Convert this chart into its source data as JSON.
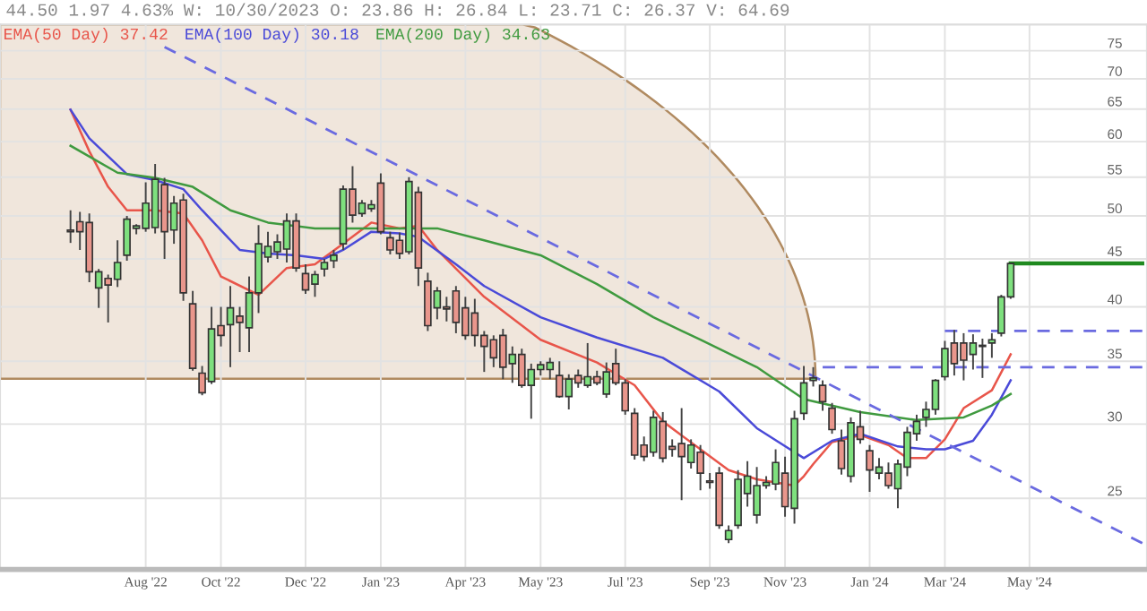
{
  "chart_data": {
    "type": "candlestick",
    "title": "44.50 1.97 4.63% W: 10/30/2023 O: 23.86 H: 26.84 L: 23.71 C: 26.37 V: 64.69",
    "categories": [
      null,
      null,
      null,
      null,
      null,
      null,
      null,
      null,
      null,
      null,
      null,
      null,
      null,
      null,
      null,
      "Aug '22",
      null,
      null,
      null,
      null,
      null,
      null,
      null,
      "Oct '22",
      null,
      null,
      null,
      null,
      null,
      null,
      null,
      null,
      "Dec '22",
      null,
      null,
      null,
      null,
      null,
      null,
      null,
      "Jan '23",
      null,
      null,
      null,
      null,
      null,
      null,
      null,
      null,
      "Apr '23",
      null,
      null,
      null,
      null,
      null,
      null,
      null,
      "May '23",
      null,
      null,
      null,
      null,
      null,
      null,
      null,
      null,
      "Jul '23",
      null,
      null,
      null,
      null,
      null,
      null,
      null,
      null,
      "Sep '23",
      null,
      null,
      null,
      null,
      null,
      null,
      null,
      "Nov '23",
      null,
      null,
      null,
      null,
      null,
      null,
      null,
      null,
      "Jan '24",
      null,
      null,
      null,
      null,
      null,
      null,
      null,
      "Mar '24",
      null,
      null,
      null,
      null,
      null,
      null,
      null,
      null,
      "May '24",
      null,
      null,
      null,
      null,
      null,
      null,
      null,
      null,
      null,
      null,
      null,
      null
    ],
    "ohlc": [
      null,
      null,
      null,
      null,
      null,
      null,
      null,
      [
        48.3,
        50.7,
        46.8,
        48.1
      ],
      [
        49.3,
        50.5,
        46.0,
        48.1
      ],
      [
        49.2,
        50.3,
        42.5,
        43.6
      ],
      [
        41.9,
        43.9,
        39.9,
        43.6
      ],
      [
        42.9,
        43.3,
        38.5,
        42.2
      ],
      [
        42.8,
        47.1,
        42.0,
        44.6
      ],
      [
        45.4,
        50.0,
        44.8,
        49.6
      ],
      [
        48.5,
        49.0,
        47.8,
        48.8
      ],
      [
        48.5,
        54.3,
        48.1,
        51.6
      ],
      [
        48.6,
        56.8,
        47.9,
        54.7
      ],
      [
        54.0,
        54.9,
        45.0,
        48.1
      ],
      [
        48.3,
        52.5,
        46.7,
        51.6
      ],
      [
        52.0,
        52.8,
        40.6,
        41.4
      ],
      [
        40.3,
        41.6,
        34.2,
        34.4
      ],
      [
        34.0,
        34.6,
        32.2,
        32.4
      ],
      [
        33.3,
        40.0,
        33.1,
        37.9
      ],
      [
        38.2,
        40.0,
        36.3,
        37.3
      ],
      [
        38.3,
        42.1,
        34.5,
        39.9
      ],
      [
        39.1,
        40.0,
        35.8,
        38.5
      ],
      [
        38.0,
        43.1,
        35.8,
        41.4
      ],
      [
        41.4,
        48.9,
        39.4,
        46.7
      ],
      [
        45.2,
        48.1,
        44.6,
        46.4
      ],
      [
        45.8,
        47.8,
        45.0,
        46.9
      ],
      [
        46.1,
        50.3,
        44.6,
        49.4
      ],
      [
        49.4,
        50.3,
        43.6,
        44.0
      ],
      [
        43.4,
        44.4,
        41.3,
        41.7
      ],
      [
        42.3,
        43.7,
        41.0,
        43.3
      ],
      [
        43.9,
        45.0,
        43.1,
        44.6
      ],
      [
        44.8,
        46.0,
        44.0,
        45.4
      ],
      [
        46.7,
        53.9,
        46.0,
        53.4
      ],
      [
        53.4,
        56.5,
        49.2,
        50.1
      ],
      [
        50.3,
        52.0,
        49.9,
        51.6
      ],
      [
        50.9,
        52.0,
        50.5,
        51.4
      ],
      [
        54.2,
        55.5,
        47.8,
        48.1
      ],
      [
        47.4,
        48.1,
        45.5,
        46.0
      ],
      [
        47.1,
        48.0,
        45.0,
        45.6
      ],
      [
        45.8,
        55.0,
        45.5,
        54.4
      ],
      [
        53.0,
        53.7,
        42.1,
        44.0
      ],
      [
        42.6,
        43.5,
        37.7,
        38.2
      ],
      [
        39.9,
        42.0,
        38.8,
        41.6
      ],
      [
        40.0,
        41.0,
        38.6,
        39.8
      ],
      [
        41.6,
        42.1,
        37.5,
        38.5
      ],
      [
        39.9,
        41.0,
        36.9,
        37.3
      ],
      [
        39.4,
        40.8,
        36.3,
        37.3
      ],
      [
        37.3,
        37.7,
        34.1,
        36.3
      ],
      [
        36.9,
        37.3,
        34.5,
        35.3
      ],
      [
        37.3,
        37.9,
        33.5,
        34.5
      ],
      [
        34.8,
        36.3,
        33.2,
        35.6
      ],
      [
        35.6,
        36.1,
        32.8,
        33.0
      ],
      [
        33.0,
        34.8,
        30.4,
        34.3
      ],
      [
        34.3,
        35.0,
        33.8,
        34.7
      ],
      [
        34.3,
        35.3,
        33.5,
        34.9
      ],
      [
        33.8,
        35.0,
        32.0,
        32.1
      ],
      [
        32.1,
        33.9,
        31.1,
        33.5
      ],
      [
        33.8,
        34.3,
        32.8,
        33.2
      ],
      [
        33.0,
        36.6,
        32.8,
        33.7
      ],
      [
        33.7,
        34.2,
        33.0,
        33.2
      ],
      [
        32.3,
        34.9,
        32.0,
        34.1
      ],
      [
        34.8,
        36.1,
        33.0,
        33.2
      ],
      [
        33.2,
        33.5,
        30.7,
        31.0
      ],
      [
        30.8,
        31.2,
        27.5,
        27.8
      ],
      [
        28.5,
        29.1,
        27.4,
        27.7
      ],
      [
        28.0,
        31.0,
        27.7,
        30.5
      ],
      [
        30.2,
        30.9,
        27.3,
        27.6
      ],
      [
        28.4,
        28.9,
        27.7,
        28.2
      ],
      [
        28.6,
        31.2,
        24.9,
        27.7
      ],
      [
        27.3,
        28.9,
        26.9,
        28.5
      ],
      [
        28.0,
        28.5,
        25.5,
        26.6
      ],
      [
        26.1,
        26.6,
        25.6,
        26.0
      ],
      [
        26.6,
        27.0,
        23.2,
        23.4
      ],
      [
        22.6,
        23.4,
        22.4,
        23.1
      ],
      [
        23.4,
        26.8,
        23.2,
        26.2
      ],
      [
        25.3,
        27.4,
        24.5,
        26.4
      ],
      [
        24.0,
        27.0,
        23.5,
        25.8
      ],
      [
        25.8,
        26.4,
        25.6,
        26.0
      ],
      [
        25.9,
        28.2,
        25.5,
        27.3
      ],
      [
        26.6,
        27.7,
        23.9,
        24.5
      ],
      [
        24.4,
        31.0,
        23.5,
        30.4
      ],
      [
        30.8,
        34.6,
        30.3,
        33.2
      ],
      [
        33.4,
        34.5,
        32.9,
        33.6
      ],
      [
        33.0,
        33.4,
        31.0,
        31.7
      ],
      [
        31.2,
        31.6,
        29.3,
        29.6
      ],
      [
        28.8,
        29.6,
        26.5,
        26.9
      ],
      [
        26.4,
        30.5,
        26.0,
        30.1
      ],
      [
        29.8,
        31.0,
        28.6,
        28.9
      ],
      [
        28.1,
        28.5,
        25.4,
        26.8
      ],
      [
        26.6,
        27.6,
        26.2,
        27.0
      ],
      [
        26.6,
        27.3,
        25.6,
        25.8
      ],
      [
        25.6,
        27.5,
        24.4,
        27.2
      ],
      [
        27.0,
        29.8,
        26.4,
        29.4
      ],
      [
        29.3,
        30.7,
        28.8,
        30.2
      ],
      [
        30.5,
        31.7,
        29.8,
        31.1
      ],
      [
        31.1,
        33.5,
        30.7,
        33.4
      ],
      [
        33.7,
        36.8,
        33.4,
        36.1
      ],
      [
        36.6,
        37.8,
        33.8,
        34.8
      ],
      [
        36.6,
        37.5,
        33.4,
        35.1
      ],
      [
        35.6,
        37.4,
        34.3,
        36.6
      ],
      [
        36.4,
        37.0,
        33.6,
        36.3
      ],
      [
        36.6,
        37.5,
        35.3,
        36.9
      ],
      [
        37.5,
        41.2,
        37.2,
        41.0
      ],
      [
        41.0,
        44.5,
        40.8,
        44.5
      ],
      null,
      null,
      null,
      null,
      null,
      null,
      null,
      null,
      null,
      null,
      null,
      null,
      null,
      null
    ],
    "colors": [
      null,
      null,
      null,
      null,
      null,
      null,
      null,
      "#e9968c",
      "#e9968c",
      "#e9968c",
      "#7ee07e",
      "#e9968c",
      "#7ee07e",
      "#7ee07e",
      "#7ee07e",
      "#7ee07e",
      "#7ee07e",
      "#e9968c",
      "#7ee07e",
      "#e9968c",
      "#e9968c",
      "#e9968c",
      "#7ee07e",
      "#e9968c",
      "#7ee07e",
      "#e9968c",
      "#7ee07e",
      "#7ee07e",
      "#7ee07e",
      "#7ee07e",
      "#7ee07e",
      "#e9968c",
      "#e9968c",
      "#7ee07e",
      "#7ee07e",
      "#7ee07e",
      "#7ee07e",
      "#e9968c",
      "#7ee07e",
      "#7ee07e",
      "#e9968c",
      "#e9968c",
      "#e9968c",
      "#7ee07e",
      "#e9968c",
      "#e9968c",
      "#7ee07e",
      "#e9968c",
      "#e9968c",
      "#e9968c",
      "#e9968c",
      "#e9968c",
      "#e9968c",
      "#e9968c",
      "#7ee07e",
      "#e9968c",
      "#7ee07e",
      "#7ee07e",
      "#7ee07e",
      "#e9968c",
      "#7ee07e",
      "#e9968c",
      "#7ee07e",
      "#e9968c",
      "#7ee07e",
      "#e9968c",
      "#e9968c",
      "#e9968c",
      "#e9968c",
      "#7ee07e",
      "#e9968c",
      "#e9968c",
      "#e9968c",
      "#7ee07e",
      "#e9968c",
      "#e9968c",
      "#e9968c",
      "#7ee07e",
      "#7ee07e",
      "#7ee07e",
      "#7ee07e",
      "#7ee07e",
      "#7ee07e",
      "#e9968c",
      "#7ee07e",
      "#7ee07e",
      "#7ee07e",
      "#e9968c",
      "#e9968c",
      "#e9968c",
      "#7ee07e",
      "#e9968c",
      "#e9968c",
      "#7ee07e",
      "#e9968c",
      "#7ee07e",
      "#7ee07e",
      "#7ee07e",
      "#7ee07e",
      "#7ee07e",
      "#7ee07e",
      "#e9968c",
      "#e9968c",
      "#7ee07e",
      "#e9968c",
      "#7ee07e",
      "#7ee07e",
      "#7ee07e",
      null,
      null,
      null,
      null,
      null,
      null,
      null,
      null,
      null,
      null,
      null,
      null,
      null,
      null
    ],
    "series": [
      {
        "name": "EMA(50 Day) 37.42",
        "color": "#e8554a",
        "type": "line",
        "values": [
          null,
          null,
          null,
          null,
          null,
          null,
          null,
          64.9,
          null,
          58.6,
          null,
          53.7,
          null,
          50.7,
          null,
          null,
          50.7,
          null,
          null,
          50.3,
          null,
          47.1,
          null,
          43.1,
          null,
          null,
          null,
          41.2,
          null,
          null,
          44.0,
          null,
          null,
          44.4,
          null,
          null,
          46.7,
          null,
          null,
          49.2,
          null,
          null,
          48.5,
          null,
          48.8,
          null,
          46.0,
          null,
          null,
          null,
          null,
          41.0,
          null,
          null,
          null,
          null,
          null,
          36.9,
          null,
          null,
          null,
          null,
          null,
          34.9,
          null,
          null,
          null,
          33.0,
          null,
          null,
          30.2,
          null,
          null,
          null,
          28.2,
          null,
          null,
          26.8,
          null,
          null,
          26.2,
          null,
          null,
          null,
          25.8,
          26.4,
          27.2,
          null,
          28.7,
          null,
          null,
          29.2,
          null,
          null,
          28.5,
          null,
          27.6,
          null,
          27.6,
          null,
          28.9,
          null,
          31.2,
          null,
          null,
          32.6,
          null,
          35.6,
          null,
          null,
          null,
          null,
          null,
          null,
          null,
          null,
          null,
          null,
          null,
          null,
          null,
          null
        ]
      },
      {
        "name": "EMA(100 Day) 30.18",
        "color": "#4a4ad8",
        "type": "line",
        "values": [
          null,
          null,
          null,
          null,
          null,
          null,
          null,
          64.9,
          null,
          60.5,
          null,
          null,
          null,
          55.4,
          null,
          null,
          54.6,
          null,
          null,
          53.4,
          null,
          50.7,
          null,
          null,
          null,
          46.0,
          null,
          null,
          45.6,
          null,
          null,
          45.4,
          null,
          null,
          45.0,
          null,
          46.0,
          null,
          null,
          48.1,
          null,
          null,
          47.9,
          null,
          47.5,
          null,
          null,
          null,
          44.4,
          null,
          null,
          42.1,
          null,
          null,
          null,
          null,
          null,
          39.0,
          null,
          null,
          null,
          null,
          null,
          37.1,
          null,
          null,
          null,
          null,
          null,
          null,
          35.3,
          null,
          null,
          null,
          null,
          null,
          32.5,
          null,
          null,
          null,
          29.7,
          null,
          null,
          null,
          null,
          27.6,
          null,
          null,
          28.8,
          null,
          null,
          29.3,
          null,
          null,
          null,
          28.4,
          null,
          null,
          28.2,
          null,
          28.2,
          null,
          null,
          28.8,
          null,
          30.7,
          null,
          33.4,
          null,
          null,
          null,
          null,
          null,
          null,
          null,
          null,
          null,
          null,
          null,
          null,
          null,
          null
        ]
      },
      {
        "name": "EMA(200 Day) 34.63",
        "color": "#3f9a3f",
        "type": "line",
        "values": [
          null,
          null,
          null,
          null,
          null,
          null,
          null,
          59.4,
          null,
          null,
          null,
          null,
          55.6,
          null,
          null,
          null,
          54.9,
          null,
          null,
          null,
          53.7,
          null,
          null,
          null,
          50.7,
          null,
          null,
          null,
          49.2,
          null,
          null,
          null,
          null,
          48.5,
          null,
          null,
          null,
          null,
          null,
          48.5,
          null,
          null,
          null,
          null,
          null,
          null,
          48.5,
          null,
          null,
          null,
          null,
          47.1,
          null,
          null,
          null,
          null,
          null,
          45.4,
          null,
          null,
          null,
          null,
          null,
          42.3,
          null,
          null,
          null,
          null,
          null,
          39.0,
          null,
          null,
          null,
          null,
          36.9,
          null,
          null,
          null,
          null,
          null,
          34.5,
          null,
          null,
          null,
          null,
          31.9,
          null,
          null,
          null,
          null,
          null,
          30.9,
          null,
          null,
          null,
          null,
          null,
          30.3,
          null,
          null,
          null,
          null,
          30.5,
          null,
          null,
          31.4,
          null,
          32.3,
          null,
          null,
          null,
          null,
          null,
          null,
          null,
          null,
          null,
          null,
          null,
          null,
          null,
          null
        ]
      },
      {
        "color": "#6a6ae0",
        "type": "line",
        "line_style": "dashed",
        "values": [
          null,
          null,
          null,
          null,
          null,
          null,
          null,
          null,
          null,
          null,
          null,
          null,
          null,
          null,
          null,
          null,
          null,
          75.7,
          null,
          null,
          null,
          null,
          null,
          null,
          null,
          null,
          null,
          null,
          null,
          null,
          null,
          null,
          null,
          null,
          null,
          null,
          null,
          null,
          null,
          null,
          null,
          null,
          null,
          null,
          null,
          null,
          null,
          null,
          null,
          null,
          null,
          null,
          null,
          null,
          null,
          null,
          null,
          null,
          null,
          null,
          null,
          null,
          null,
          null,
          null,
          null,
          null,
          null,
          null,
          null,
          null,
          null,
          null,
          null,
          null,
          null,
          null,
          null,
          null,
          null,
          null,
          null,
          null,
          null,
          null,
          null,
          null,
          null,
          null,
          null,
          null,
          null,
          null,
          null,
          null,
          null,
          null,
          null,
          null,
          null,
          null,
          null,
          null,
          null,
          null,
          null,
          null,
          null,
          null,
          null,
          null,
          null,
          null,
          null,
          null,
          null,
          null,
          null,
          null,
          null,
          null,
          22.4
        ]
      },
      {
        "color": "#6a6ae0",
        "type": "line",
        "line_style": "dashed",
        "values": [
          null,
          null,
          null,
          null,
          null,
          null,
          null,
          null,
          null,
          null,
          null,
          null,
          null,
          null,
          null,
          null,
          null,
          null,
          null,
          null,
          null,
          null,
          null,
          null,
          null,
          null,
          null,
          null,
          null,
          null,
          null,
          null,
          null,
          null,
          null,
          null,
          null,
          null,
          null,
          null,
          null,
          null,
          null,
          null,
          null,
          null,
          null,
          null,
          null,
          null,
          null,
          null,
          null,
          null,
          null,
          null,
          null,
          null,
          null,
          null,
          null,
          null,
          null,
          null,
          null,
          null,
          null,
          null,
          null,
          null,
          null,
          null,
          null,
          null,
          null,
          null,
          null,
          null,
          null,
          null,
          null,
          null,
          null,
          null,
          null,
          null,
          null,
          34.5,
          null,
          null,
          null,
          null,
          null,
          null,
          null,
          null,
          null,
          null,
          null,
          null,
          null,
          null,
          null,
          null,
          null,
          null,
          null,
          null,
          null,
          null,
          null,
          null,
          null,
          null,
          null,
          null,
          null,
          null,
          null,
          null,
          null,
          34.5
        ]
      },
      {
        "color": "#6a6ae0",
        "type": "line",
        "line_style": "dashed",
        "values": [
          null,
          null,
          null,
          null,
          null,
          null,
          null,
          null,
          null,
          null,
          null,
          null,
          null,
          null,
          null,
          null,
          null,
          null,
          null,
          null,
          null,
          null,
          null,
          null,
          null,
          null,
          null,
          null,
          null,
          null,
          null,
          null,
          null,
          null,
          null,
          null,
          null,
          null,
          null,
          null,
          null,
          null,
          null,
          null,
          null,
          null,
          null,
          null,
          null,
          null,
          null,
          null,
          null,
          null,
          null,
          null,
          null,
          null,
          null,
          null,
          null,
          null,
          null,
          null,
          null,
          null,
          null,
          null,
          null,
          null,
          null,
          null,
          null,
          null,
          null,
          null,
          null,
          null,
          null,
          null,
          null,
          null,
          null,
          null,
          null,
          null,
          null,
          null,
          null,
          null,
          null,
          null,
          null,
          null,
          null,
          null,
          null,
          null,
          null,
          null,
          37.7,
          null,
          null,
          null,
          null,
          null,
          null,
          null,
          null,
          null,
          null,
          null,
          null,
          null,
          null,
          null,
          null,
          null,
          null,
          null,
          null,
          37.7
        ]
      },
      {
        "color": "#1f8a1f",
        "type": "line",
        "values": [
          null,
          null,
          null,
          null,
          null,
          null,
          null,
          null,
          null,
          null,
          null,
          null,
          null,
          null,
          null,
          null,
          null,
          null,
          null,
          null,
          null,
          null,
          null,
          null,
          null,
          null,
          null,
          null,
          null,
          null,
          null,
          null,
          null,
          null,
          null,
          null,
          null,
          null,
          null,
          null,
          null,
          null,
          null,
          null,
          null,
          null,
          null,
          null,
          null,
          null,
          null,
          null,
          null,
          null,
          null,
          null,
          null,
          null,
          null,
          null,
          null,
          null,
          null,
          null,
          null,
          null,
          null,
          null,
          null,
          null,
          null,
          null,
          null,
          null,
          null,
          null,
          null,
          null,
          null,
          null,
          null,
          null,
          null,
          null,
          null,
          null,
          null,
          null,
          null,
          null,
          null,
          null,
          null,
          null,
          null,
          null,
          null,
          null,
          null,
          null,
          null,
          null,
          null,
          null,
          null,
          null,
          null,
          44.5,
          null,
          null,
          null,
          null,
          null,
          null,
          null,
          null,
          null,
          null,
          null,
          null,
          null,
          44.5
        ]
      }
    ],
    "ylim": [
      21,
      80
    ],
    "yticks": [
      25,
      30,
      35,
      40,
      45,
      50,
      55,
      60,
      65,
      70,
      75
    ],
    "log": true,
    "grid": true,
    "legend": "top left"
  }
}
